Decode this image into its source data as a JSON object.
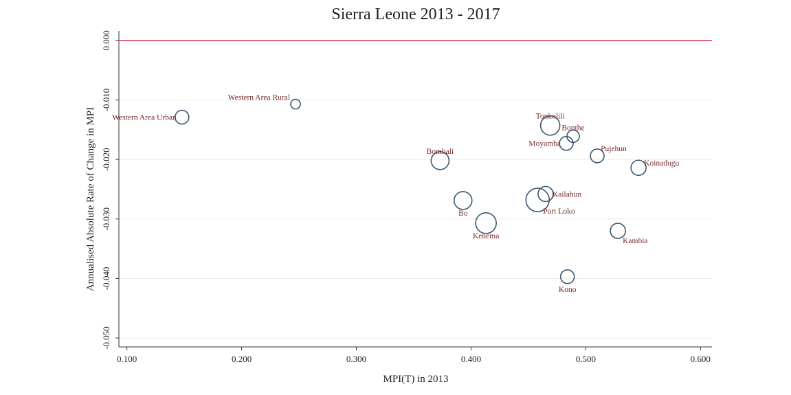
{
  "chart_data": {
    "type": "scatter",
    "title": "Sierra Leone 2013 - 2017",
    "x_label": "MPI(T) in 2013",
    "y_label": "Annualised Absolute Rate of Change in MPI",
    "xlim": [
      0.093,
      0.61
    ],
    "ylim": [
      -0.0515,
      0.0016
    ],
    "xticks": [
      {
        "value": 0.1,
        "label": "0.100"
      },
      {
        "value": 0.2,
        "label": "0.200"
      },
      {
        "value": 0.3,
        "label": "0.300"
      },
      {
        "value": 0.4,
        "label": "0.400"
      },
      {
        "value": 0.5,
        "label": "0.500"
      },
      {
        "value": 0.6,
        "label": "0.600"
      }
    ],
    "yticks": [
      {
        "value": 0,
        "label": "0.000"
      },
      {
        "value": -0.01,
        "label": "-0.010"
      },
      {
        "value": -0.02,
        "label": "-0.020"
      },
      {
        "value": -0.03,
        "label": "-0.030"
      },
      {
        "value": -0.04,
        "label": "-0.040"
      },
      {
        "value": -0.05,
        "label": "-0.050"
      }
    ],
    "grid": true,
    "reference_line": 0,
    "reference_color": "#e0485a",
    "color": "#3b5670",
    "labels": [
      "Western Area Urban",
      "Western Area Rural",
      "Tonkolili",
      "Bonthe",
      "Moyamba",
      "Pujehun",
      "Koinadugu",
      "Bombali",
      "Bo",
      "Kailahun",
      "Port Loko",
      "Kenema",
      "Kambia",
      "Kono"
    ],
    "x": [
      0.148,
      0.247,
      0.469,
      0.489,
      0.483,
      0.51,
      0.546,
      0.373,
      0.393,
      0.465,
      0.458,
      0.413,
      0.528,
      0.484
    ],
    "values": [
      -0.0129,
      -0.0107,
      -0.0143,
      -0.0161,
      -0.0173,
      -0.0194,
      -0.0214,
      -0.0202,
      -0.0269,
      -0.0258,
      -0.0268,
      -0.0307,
      -0.032,
      -0.0397
    ],
    "sizes": [
      10,
      7,
      14,
      9,
      10,
      10,
      11,
      13,
      13,
      11,
      17,
      15,
      11,
      10
    ]
  }
}
